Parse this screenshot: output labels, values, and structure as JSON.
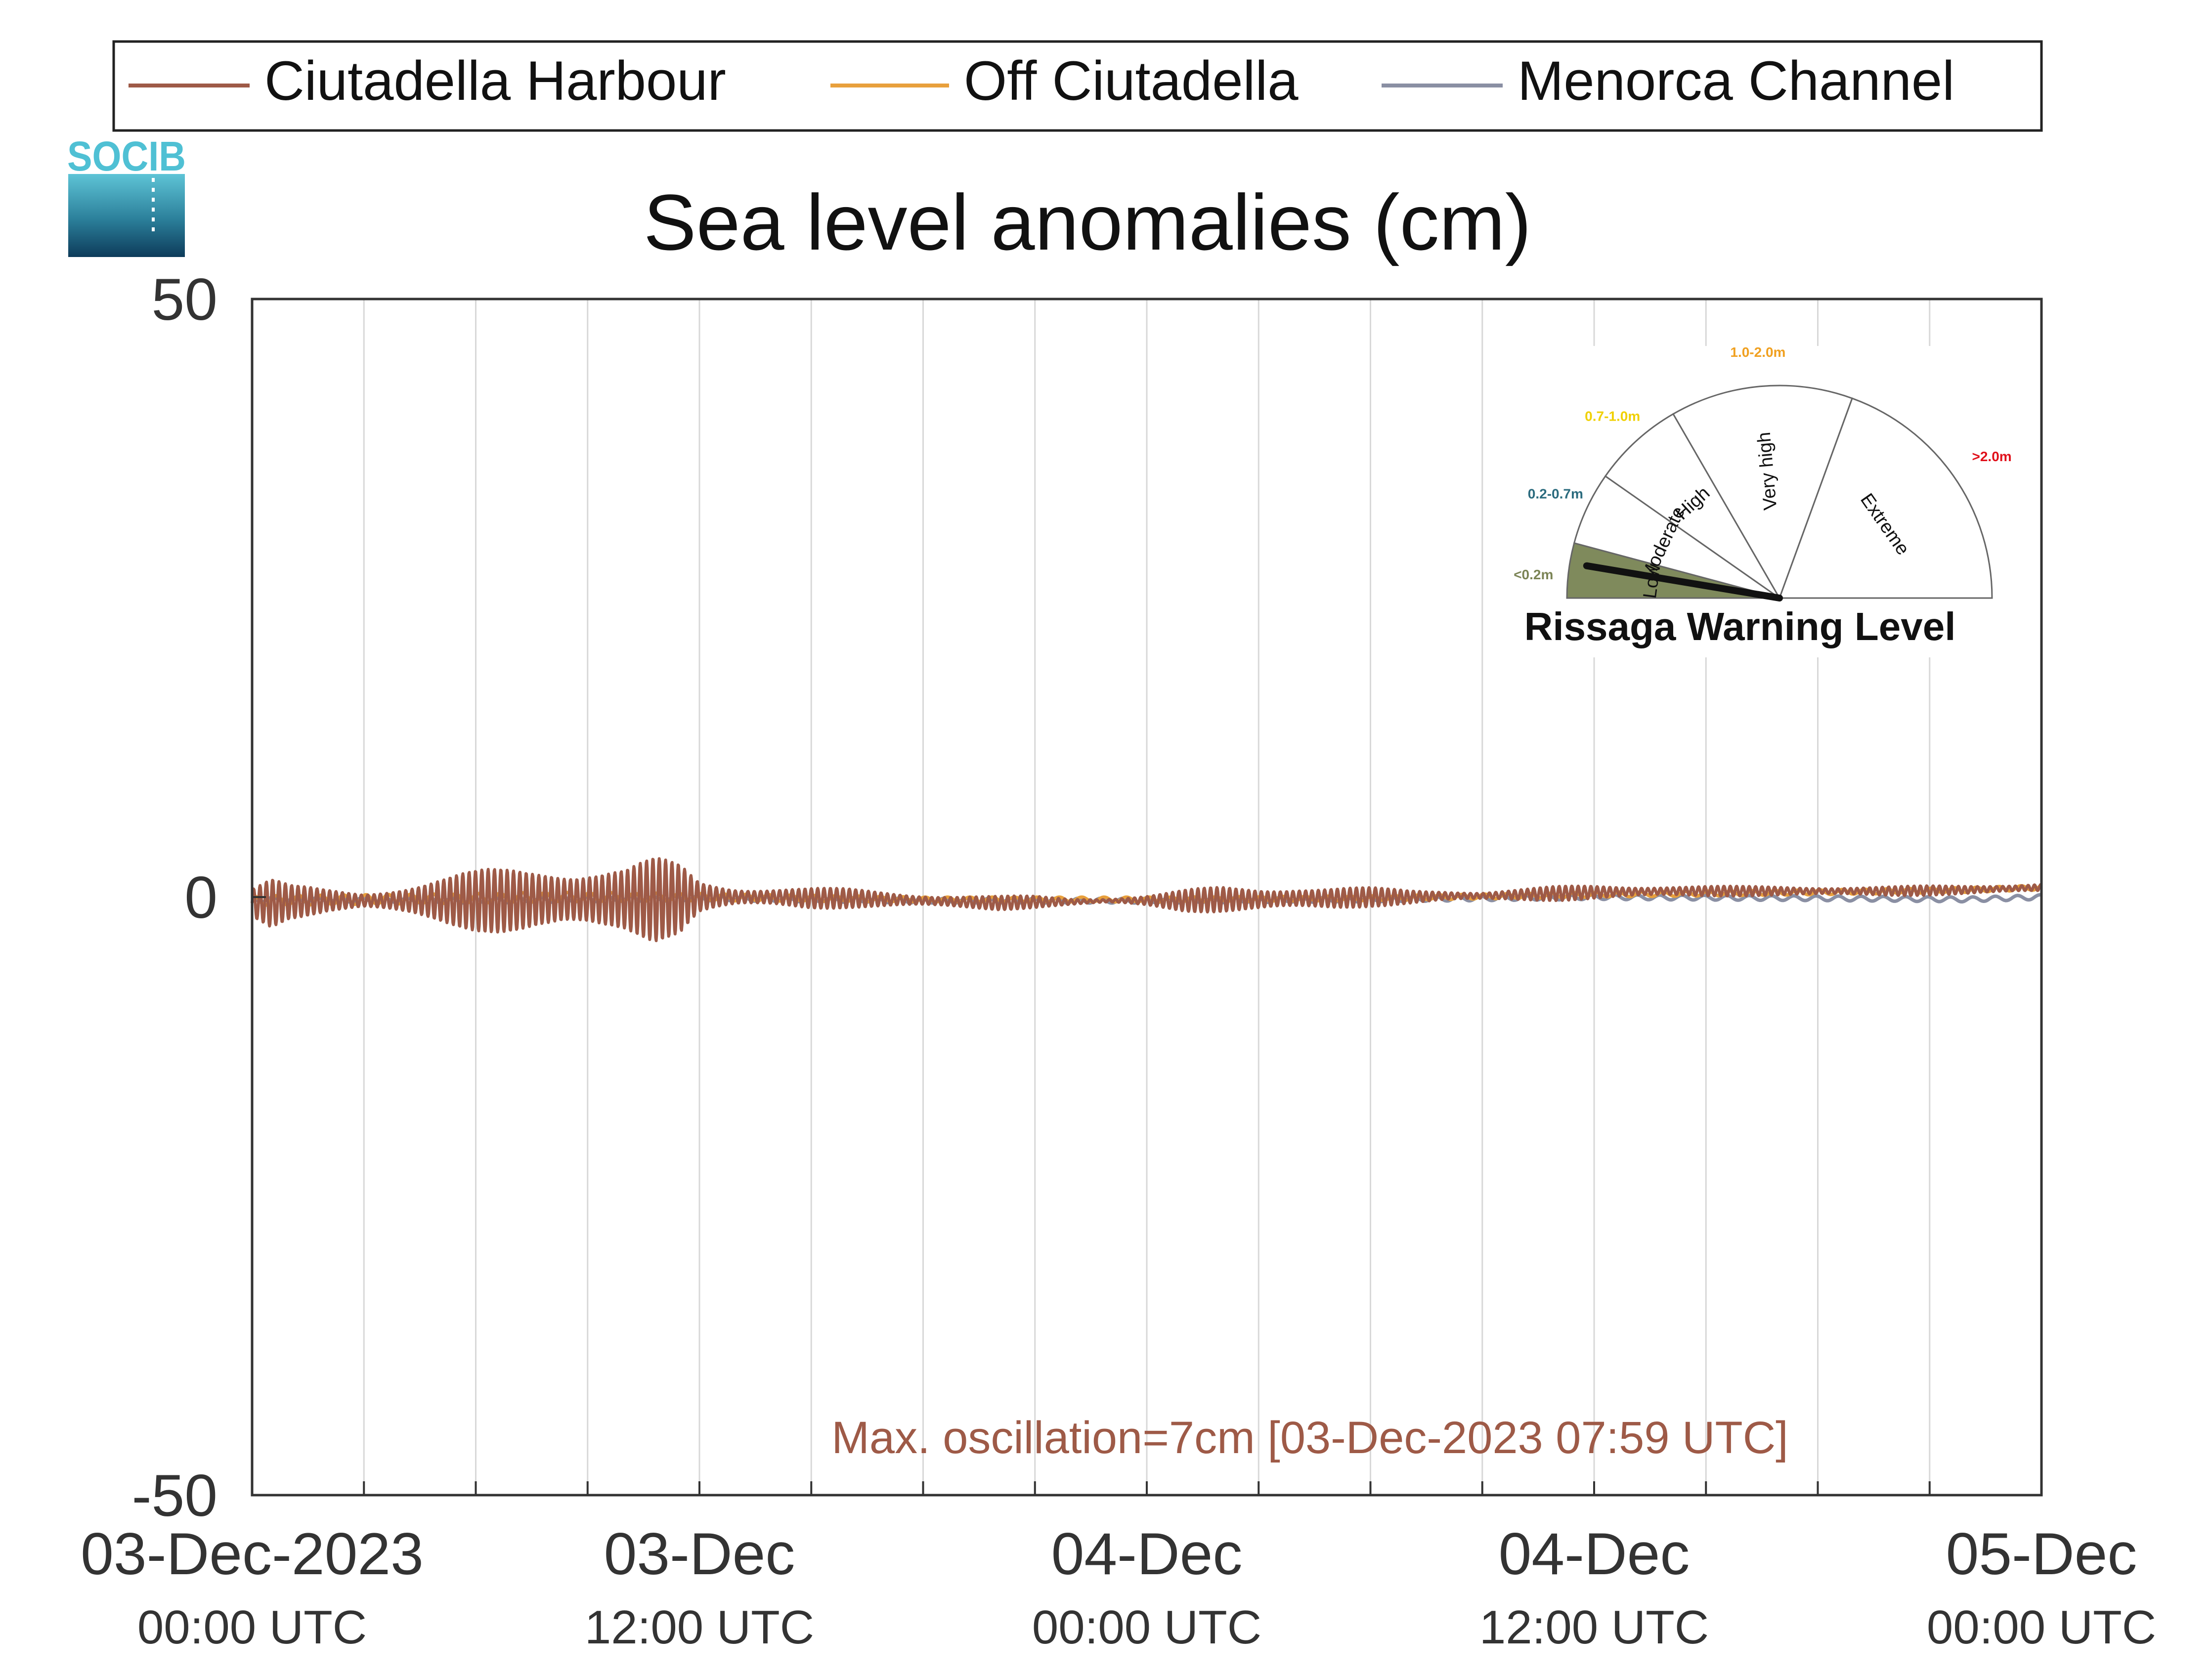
{
  "logo": {
    "text": "SOCIB"
  },
  "legend": {
    "placement": "top",
    "entries": [
      {
        "name": "Ciutadella Harbour",
        "color": "#9e5a47"
      },
      {
        "name": "Off Ciutadella",
        "color": "#e8a03c"
      },
      {
        "name": "Menorca Channel",
        "color": "#8a8fa3"
      }
    ]
  },
  "gauge": {
    "title": "Rissaga Warning Level",
    "levels": [
      {
        "name": "Low",
        "range": "<0.2m",
        "range_color": "#7b8455",
        "fill": "#7f8a5c",
        "active": true
      },
      {
        "name": "Moderate",
        "range": "0.2-0.7m",
        "range_color": "#2b6b7e",
        "fill": "#ffffff",
        "active": false
      },
      {
        "name": "High",
        "range": "0.7-1.0m",
        "range_color": "#f0d000",
        "fill": "#ffffff",
        "active": false
      },
      {
        "name": "Very high",
        "range": "1.0-2.0m",
        "range_color": "#f0a020",
        "fill": "#ffffff",
        "active": false
      },
      {
        "name": "Extreme",
        "range": ">2.0m",
        "range_color": "#e0101a",
        "fill": "#ffffff",
        "active": false
      }
    ]
  },
  "annotation": {
    "text": "Max. oscillation=7cm [03-Dec-2023 07:59 UTC]",
    "color": "#9e5a47"
  },
  "chart_data": {
    "type": "line",
    "title": "Sea level anomalies (cm)",
    "xlabel": "",
    "ylabel": "",
    "ylim": [
      -50,
      50
    ],
    "yticks": [
      -50,
      0,
      50
    ],
    "xlim_hours": [
      0,
      48
    ],
    "xticks": [
      {
        "hour": 0,
        "date": "03-Dec-2023",
        "time": "00:00 UTC"
      },
      {
        "hour": 12,
        "date": "03-Dec",
        "time": "12:00 UTC"
      },
      {
        "hour": 24,
        "date": "04-Dec",
        "time": "00:00 UTC"
      },
      {
        "hour": 36,
        "date": "04-Dec",
        "time": "12:00 UTC"
      },
      {
        "hour": 48,
        "date": "05-Dec",
        "time": "00:00 UTC"
      }
    ],
    "minor_grid_hours": [
      3,
      6,
      9,
      12,
      15,
      18,
      21,
      24,
      27,
      30,
      33,
      36,
      39,
      42,
      45
    ],
    "grid": "vertical",
    "series": [
      {
        "name": "Ciutadella Harbour",
        "color": "#9e5a47",
        "envelope": {
          "hours": [
            0,
            0.5,
            1,
            2,
            3,
            4,
            5,
            6,
            7,
            8,
            9,
            10,
            10.8,
            11.5,
            12,
            13,
            14,
            15,
            16,
            17,
            18,
            19,
            20,
            21,
            22,
            23,
            24,
            25,
            26,
            27,
            28,
            29,
            30,
            31,
            32,
            33,
            34,
            35,
            36,
            38,
            40,
            42,
            44,
            46,
            47,
            48
          ],
          "mean": [
            -0.5,
            -0.5,
            -0.4,
            -0.3,
            -0.3,
            -0.3,
            -0.3,
            -0.3,
            -0.3,
            -0.2,
            -0.2,
            -0.2,
            -0.2,
            -0.1,
            0,
            0,
            0,
            -0.1,
            -0.1,
            -0.2,
            -0.3,
            -0.4,
            -0.5,
            -0.4,
            -0.4,
            -0.3,
            -0.3,
            -0.3,
            -0.2,
            -0.2,
            -0.1,
            -0.1,
            0,
            0,
            0.1,
            0.1,
            0.2,
            0.3,
            0.4,
            0.5,
            0.5,
            0.5,
            0.5,
            0.6,
            0.7,
            0.8
          ],
          "amplitude": [
            1.5,
            2.2,
            1.4,
            1.0,
            0.8,
            1.5,
            2.0,
            2.5,
            3.0,
            3.5,
            3.2,
            2.8,
            3.5,
            3.0,
            1.5,
            1.0,
            0.9,
            0.9,
            0.8,
            0.7,
            0.6,
            0.6,
            0.6,
            0.5,
            0.3,
            0.2,
            0.5,
            0.9,
            1.1,
            1.1,
            1.2,
            1.0,
            0.8,
            0.6,
            0.5,
            0.4,
            0.5,
            0.6,
            0.6,
            0.5,
            0.4,
            0.4,
            0.4,
            0.4,
            0.4,
            0.4
          ]
        }
      },
      {
        "name": "Off Ciutadella",
        "color": "#e8a03c",
        "envelope": {
          "hours": [
            0,
            6,
            8,
            12,
            18,
            24,
            30,
            36,
            42,
            46,
            48
          ],
          "mean": [
            -0.3,
            -0.1,
            0,
            0,
            -0.2,
            -0.2,
            -0.1,
            0.2,
            0.4,
            0.6,
            0.8
          ],
          "amplitude": [
            0.4,
            0.4,
            0.4,
            0.3,
            0.2,
            0.2,
            0.2,
            0.2,
            0.2,
            0.2,
            0.2
          ]
        }
      },
      {
        "name": "Menorca Channel",
        "color": "#8a8fa3",
        "envelope": {
          "hours": [
            0,
            6,
            12,
            18,
            24,
            30,
            36,
            42,
            46,
            48
          ],
          "mean": [
            -0.2,
            -0.3,
            -0.1,
            -0.3,
            -0.3,
            -0.2,
            0,
            -0.1,
            -0.2,
            0
          ],
          "amplitude": [
            0.2,
            0.2,
            0.2,
            0.2,
            0.2,
            0.2,
            0.2,
            0.2,
            0.2,
            0.2
          ]
        }
      }
    ]
  }
}
